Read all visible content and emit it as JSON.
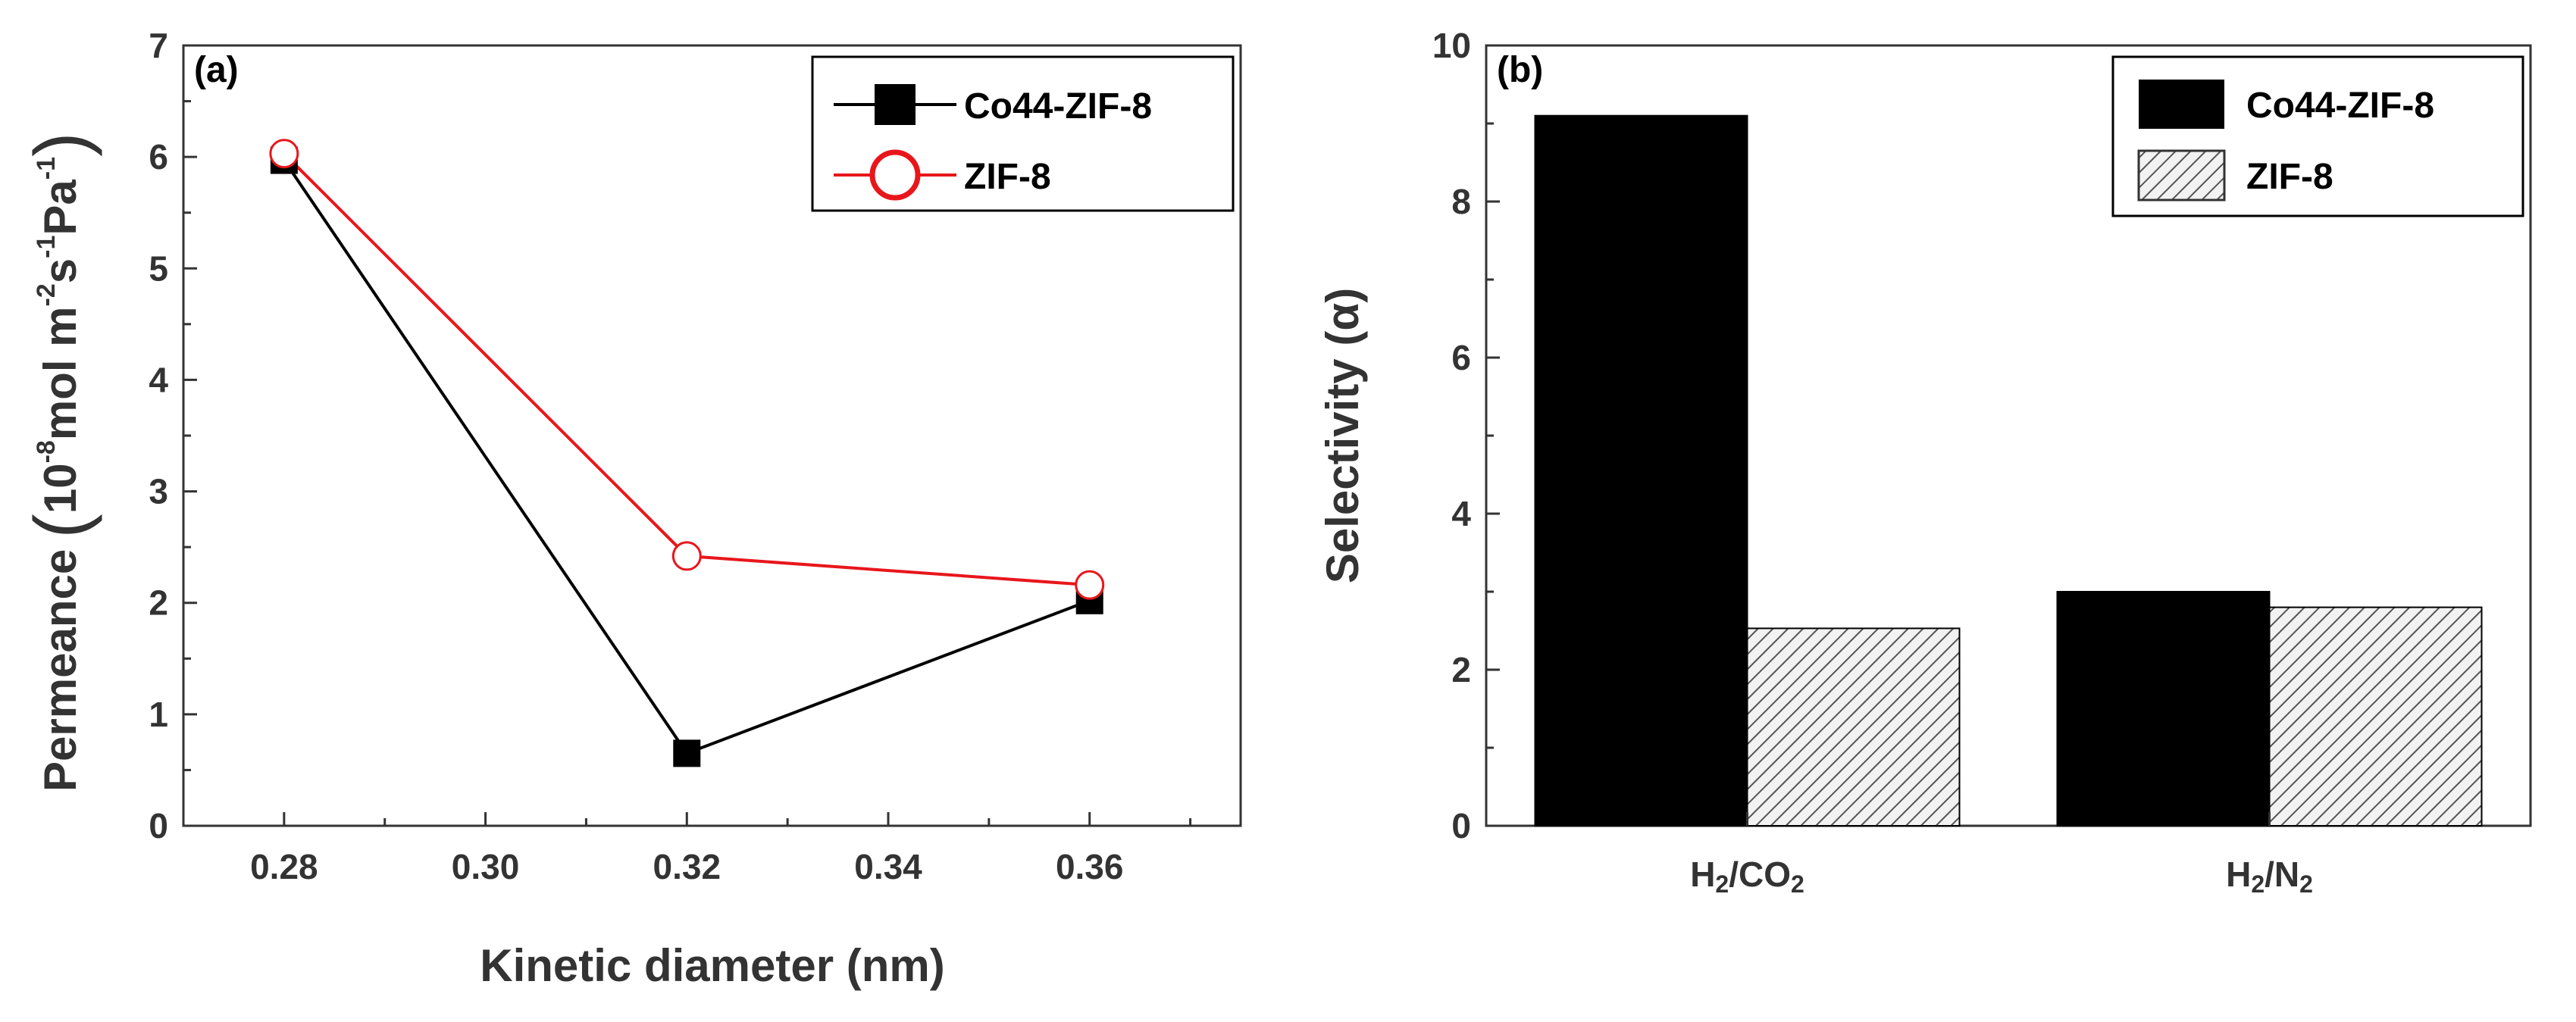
{
  "chart_data": [
    {
      "type": "line",
      "panel_label": "(a)",
      "title": "",
      "xlabel": "Kinetic diameter (nm)",
      "ylabel": {
        "main": "Permeance",
        "unit_prefix": "10",
        "unit_prefix_exp": "-8",
        "unit_mol": "mol m",
        "unit_m_exp": "-2",
        "unit_s": "s",
        "unit_s_exp": "-1",
        "unit_pa": "Pa",
        "unit_pa_exp": "-1"
      },
      "xlim": [
        0.27,
        0.375
      ],
      "ylim": [
        0,
        7
      ],
      "xticks": [
        0.28,
        0.3,
        0.32,
        0.34,
        0.36
      ],
      "xtick_labels": [
        "0.28",
        "0.30",
        "0.32",
        "0.34",
        "0.36"
      ],
      "yticks": [
        0,
        1,
        2,
        3,
        4,
        5,
        6,
        7
      ],
      "ytick_labels": [
        "0",
        "1",
        "2",
        "3",
        "4",
        "5",
        "6",
        "7"
      ],
      "legend_position": "top-right",
      "series": [
        {
          "name": "Co44-ZIF-8",
          "x": [
            0.28,
            0.32,
            0.36
          ],
          "values": [
            5.97,
            0.65,
            2.02
          ],
          "color": "#000000",
          "marker": "filled-square"
        },
        {
          "name": "ZIF-8",
          "x": [
            0.28,
            0.32,
            0.36
          ],
          "values": [
            6.03,
            2.42,
            2.16
          ],
          "color": "#e8161b",
          "marker": "open-circle"
        }
      ]
    },
    {
      "type": "bar",
      "panel_label": "(b)",
      "title": "",
      "xlabel": "",
      "ylabel": "Selectivity (α)",
      "ylim": [
        0,
        10
      ],
      "yticks": [
        0,
        2,
        4,
        6,
        8,
        10
      ],
      "ytick_labels": [
        "0",
        "2",
        "4",
        "6",
        "8",
        "10"
      ],
      "categories": [
        {
          "base": "H",
          "sub1": "2",
          "mid": "/CO",
          "sub2": "2"
        },
        {
          "base": "H",
          "sub1": "2",
          "mid": "/N",
          "sub2": "2"
        }
      ],
      "legend_position": "top-right",
      "series": [
        {
          "name": "Co44-ZIF-8",
          "values": [
            9.1,
            3.0
          ],
          "fill": "solid",
          "color": "#000000"
        },
        {
          "name": "ZIF-8",
          "values": [
            2.53,
            2.8
          ],
          "fill": "hatched",
          "color": "#555555"
        }
      ]
    }
  ]
}
